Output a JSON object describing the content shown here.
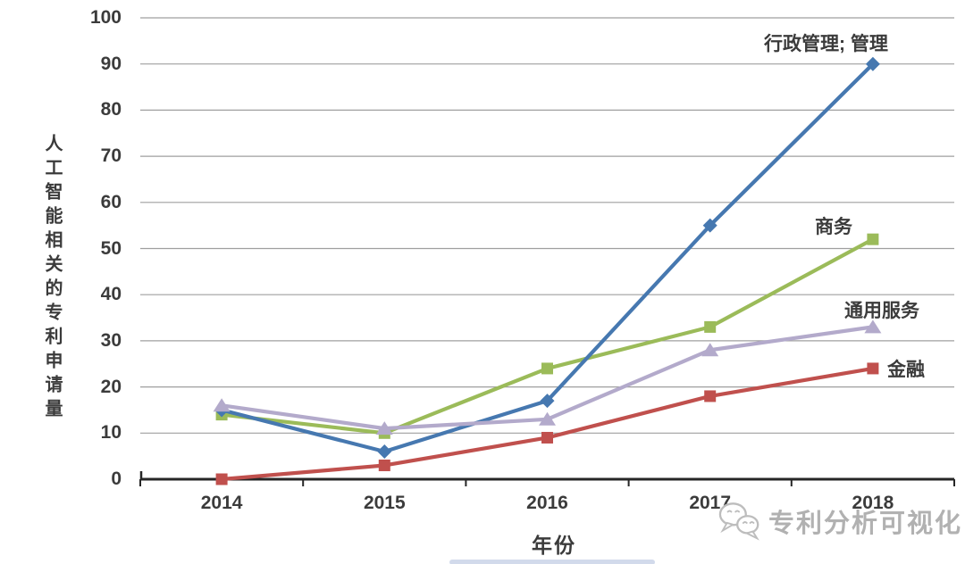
{
  "chart_data": {
    "type": "line",
    "categories": [
      "2014",
      "2015",
      "2016",
      "2017",
      "2018"
    ],
    "series": [
      {
        "name": "行政管理; 管理",
        "values": [
          15,
          6,
          17,
          55,
          90
        ],
        "color": "#4678b0",
        "marker": "diamond"
      },
      {
        "name": "商务",
        "values": [
          14,
          10,
          24,
          33,
          52
        ],
        "color": "#9bbb59",
        "marker": "square"
      },
      {
        "name": "通用服务",
        "values": [
          16,
          11,
          13,
          28,
          33
        ],
        "color": "#b3aacb",
        "marker": "triangle"
      },
      {
        "name": "金融",
        "values": [
          0,
          3,
          9,
          18,
          24
        ],
        "color": "#c0504d",
        "marker": "square"
      }
    ],
    "title": "",
    "xlabel": "年份",
    "ylabel": "人工智能相关的专利申请量",
    "ylim": [
      0,
      100
    ],
    "ytick_step": 10,
    "yticks": [
      0,
      10,
      20,
      30,
      40,
      50,
      60,
      70,
      80,
      90,
      100
    ],
    "grid": true,
    "gridline_color": "#9f9f9f",
    "axis_color": "#262626",
    "legend_position": "labels-at-line-ends"
  },
  "watermark": {
    "text": "专利分析可视化",
    "icon": "wechat-icon"
  }
}
